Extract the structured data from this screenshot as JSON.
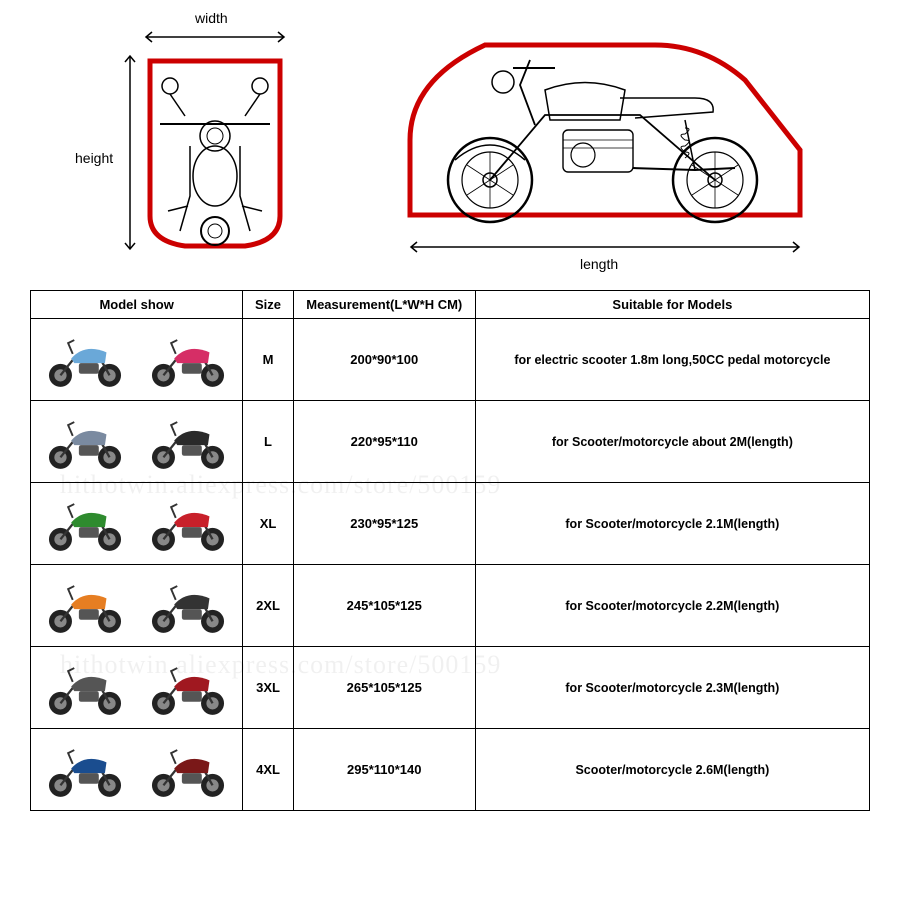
{
  "diagram": {
    "width_label": "width",
    "height_label": "height",
    "length_label": "length",
    "outline_color": "#cc0000",
    "line_color": "#000000",
    "arrow_color": "#000000"
  },
  "table": {
    "headers": {
      "model": "Model show",
      "size": "Size",
      "measurement": "Measurement(L*W*H CM)",
      "suitable": "Suitable for Models"
    },
    "rows": [
      {
        "size": "M",
        "measurement": "200*90*100",
        "suitable": "for electric scooter 1.8m long,50CC pedal motorcycle",
        "thumb_colors": [
          "#6aa8d8",
          "#d62e66"
        ]
      },
      {
        "size": "L",
        "measurement": "220*95*110",
        "suitable": "for Scooter/motorcycle about 2M(length)",
        "thumb_colors": [
          "#7a8aa0",
          "#2a2a2a"
        ]
      },
      {
        "size": "XL",
        "measurement": "230*95*125",
        "suitable": "for Scooter/motorcycle 2.1M(length)",
        "thumb_colors": [
          "#2e8b2e",
          "#c8202a"
        ]
      },
      {
        "size": "2XL",
        "measurement": "245*105*125",
        "suitable": "for Scooter/motorcycle 2.2M(length)",
        "thumb_colors": [
          "#e67e22",
          "#333333"
        ]
      },
      {
        "size": "3XL",
        "measurement": "265*105*125",
        "suitable": "for Scooter/motorcycle 2.3M(length)",
        "thumb_colors": [
          "#555555",
          "#a01820"
        ]
      },
      {
        "size": "4XL",
        "measurement": "295*110*140",
        "suitable": "Scooter/motorcycle 2.6M(length)",
        "thumb_colors": [
          "#1a4d8f",
          "#7a1818"
        ]
      }
    ],
    "border_color": "#000000",
    "background": "#ffffff",
    "font_size": 13
  },
  "watermark": {
    "text": "hithotwin.aliexpress.com/store/500159",
    "color_rgba": "rgba(0,0,0,0.06)"
  }
}
